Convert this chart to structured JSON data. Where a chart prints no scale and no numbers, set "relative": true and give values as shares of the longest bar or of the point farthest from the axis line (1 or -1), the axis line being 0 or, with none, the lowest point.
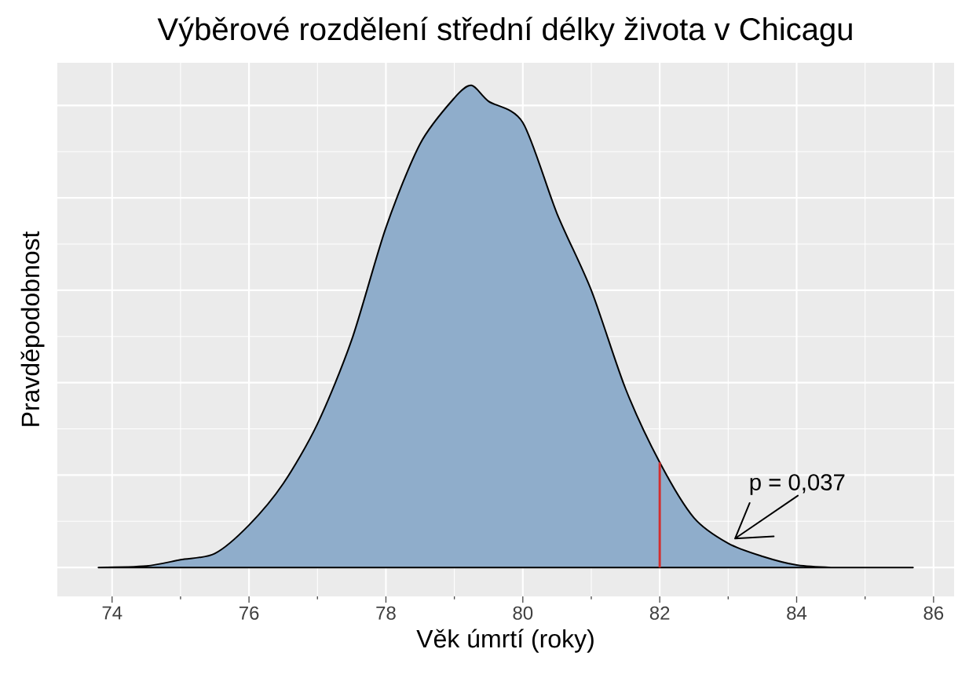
{
  "chart_data": {
    "type": "area",
    "title": "Výběrové rozdělení střední délky života v Chicagu",
    "xlabel": "Věk úmrtí (roky)",
    "ylabel": "Pravděpodobnost",
    "relative": true,
    "x": [
      73.8,
      74.5,
      75,
      75.5,
      76,
      76.5,
      77,
      77.5,
      78,
      78.5,
      79,
      79.25,
      79.5,
      80,
      80.5,
      81,
      81.5,
      82,
      82.5,
      83,
      83.5,
      84,
      84.5,
      85,
      85.7
    ],
    "series": [
      {
        "color": "#8fadcb",
        "values": [
          0,
          0.003,
          0.016,
          0.029,
          0.088,
          0.174,
          0.298,
          0.472,
          0.705,
          0.879,
          0.974,
          1,
          0.967,
          0.923,
          0.734,
          0.575,
          0.371,
          0.218,
          0.103,
          0.05,
          0.023,
          0.005,
          0,
          0,
          0
        ]
      }
    ],
    "xlim": [
      73.2,
      86.3
    ],
    "xticks": [
      74,
      76,
      78,
      80,
      82,
      84,
      86
    ],
    "grid": true,
    "ref_lines": [
      {
        "axis": "x",
        "value": 82,
        "color": "#d32f2f"
      }
    ],
    "annotations": [
      {
        "text": "p = 0,037",
        "x": 83.05,
        "y": 0.05
      }
    ]
  }
}
